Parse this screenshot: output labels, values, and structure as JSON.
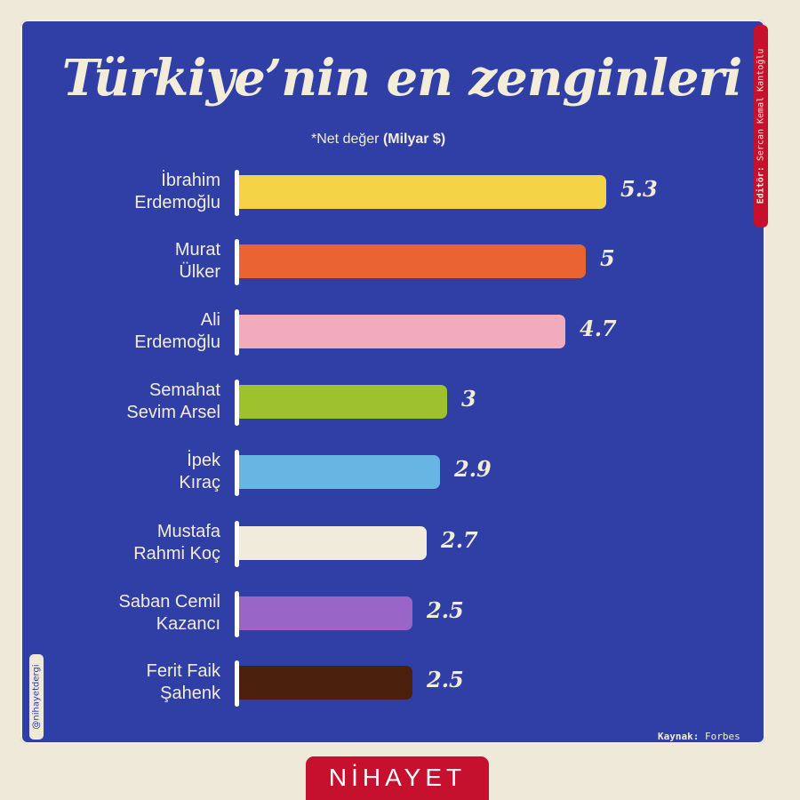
{
  "header": {
    "title": "Türkiye’nin en zenginleri",
    "subtitle_prefix": "*Net değer",
    "subtitle_unit": "(Milyar $)"
  },
  "editor": {
    "label": "Editör:",
    "name": "Sercan Kemal Kantoğlu"
  },
  "handle": "@nihayetdergi",
  "source": {
    "label": "Kaynak:",
    "value": "Forbes"
  },
  "logo": "NİHAYET",
  "rows": [
    {
      "line1": "İbrahim",
      "line2": "Erdemoğlu",
      "value": "5.3",
      "color": "#f5d347"
    },
    {
      "line1": "Murat",
      "line2": "Ülker",
      "value": "5",
      "color": "#ea6432"
    },
    {
      "line1": "Ali",
      "line2": "Erdemoğlu",
      "value": "4.7",
      "color": "#f2aabd"
    },
    {
      "line1": "Semahat",
      "line2": "Sevim Arsel",
      "value": "3",
      "color": "#9ec12e"
    },
    {
      "line1": "İpek",
      "line2": "Kıraç",
      "value": "2.9",
      "color": "#66b5e3"
    },
    {
      "line1": "Mustafa",
      "line2": "Rahmi Koç",
      "value": "2.7",
      "color": "#f1ebdb"
    },
    {
      "line1": "Saban Cemil",
      "line2": "Kazancı",
      "value": "2.5",
      "color": "#9966c7"
    },
    {
      "line1": "Ferit Faik",
      "line2": "Şahenk",
      "value": "2.5",
      "color": "#4a1f0c"
    }
  ],
  "chart_data": {
    "type": "bar",
    "orientation": "horizontal",
    "title": "Türkiye’nin en zenginleri",
    "subtitle": "*Net değer (Milyar $)",
    "xlabel": "Net değer (Milyar $)",
    "ylabel": "",
    "categories": [
      "İbrahim Erdemoğlu",
      "Murat Ülker",
      "Ali Erdemoğlu",
      "Semahat Sevim Arsel",
      "İpek Kıraç",
      "Mustafa Rahmi Koç",
      "Saban Cemil Kazancı",
      "Ferit Faik Şahenk"
    ],
    "values": [
      5.3,
      5,
      4.7,
      3,
      2.9,
      2.7,
      2.5,
      2.5
    ],
    "colors": [
      "#f5d347",
      "#ea6432",
      "#f2aabd",
      "#9ec12e",
      "#66b5e3",
      "#f1ebdb",
      "#9966c7",
      "#4a1f0c"
    ],
    "grid": false,
    "legend": "none",
    "data_labels": true,
    "source": "Forbes"
  }
}
